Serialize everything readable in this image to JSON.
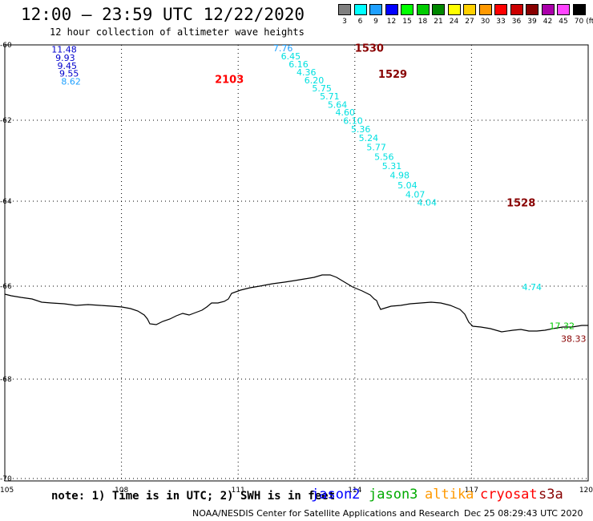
{
  "header": {
    "title": "12:00 – 23:59 UTC 12/22/2020",
    "subtitle": "12 hour collection of altimeter wave heights"
  },
  "legend": {
    "unit": "(ft)",
    "items": [
      {
        "label": "3",
        "color": "#808080"
      },
      {
        "label": "6",
        "color": "#00ffff"
      },
      {
        "label": "9",
        "color": "#1ea0ff"
      },
      {
        "label": "12",
        "color": "#0000ff"
      },
      {
        "label": "15",
        "color": "#00ff00"
      },
      {
        "label": "18",
        "color": "#00cc00"
      },
      {
        "label": "21",
        "color": "#008800"
      },
      {
        "label": "24",
        "color": "#ffff00"
      },
      {
        "label": "27",
        "color": "#ffd000"
      },
      {
        "label": "30",
        "color": "#ff9900"
      },
      {
        "label": "33",
        "color": "#ff0000"
      },
      {
        "label": "36",
        "color": "#cc0000"
      },
      {
        "label": "39",
        "color": "#880000"
      },
      {
        "label": "42",
        "color": "#aa00aa"
      },
      {
        "label": "45",
        "color": "#ff44ff"
      },
      {
        "label": "70",
        "color": "#000000"
      }
    ]
  },
  "map": {
    "lon_range": [
      105,
      120
    ],
    "lat_range": [
      -70,
      -60
    ],
    "lon_ticks": [
      "105",
      "108",
      "111",
      "114",
      "117",
      "120"
    ],
    "lat_ticks": [
      "-60",
      "-62",
      "-64",
      "-66",
      "-68",
      "-70"
    ],
    "grid": true,
    "coastline_color": "#000000",
    "pass_labels": [
      {
        "text": "2103",
        "lon": 110.4,
        "lat": -60.9,
        "color": "#ff0000"
      },
      {
        "text": "1530",
        "lon": 114.0,
        "lat": -60.07,
        "color": "#880000"
      },
      {
        "text": "1529",
        "lon": 114.6,
        "lat": -60.77,
        "color": "#880000"
      },
      {
        "text": "1528",
        "lon": 117.9,
        "lat": -64.03,
        "color": "#880000"
      }
    ],
    "observations": [
      {
        "text": "11.48",
        "lon": 106.2,
        "lat": -60.12,
        "color": "#0000cc"
      },
      {
        "text": "9.93",
        "lon": 106.3,
        "lat": -60.34,
        "color": "#0000cc"
      },
      {
        "text": "9.45",
        "lon": 106.35,
        "lat": -60.55,
        "color": "#0000cc"
      },
      {
        "text": "9.55",
        "lon": 106.4,
        "lat": -60.76,
        "color": "#0000cc"
      },
      {
        "text": "8.62",
        "lon": 106.45,
        "lat": -60.97,
        "color": "#1ea0ff"
      },
      {
        "text": "7.76",
        "lon": 111.9,
        "lat": -60.08,
        "color": "#1ea0ff"
      },
      {
        "text": "6.45",
        "lon": 112.1,
        "lat": -60.3,
        "color": "#00e0e0"
      },
      {
        "text": "6.16",
        "lon": 112.3,
        "lat": -60.51,
        "color": "#00e0e0"
      },
      {
        "text": "4.36",
        "lon": 112.5,
        "lat": -60.72,
        "color": "#00e0e0"
      },
      {
        "text": "6.20",
        "lon": 112.7,
        "lat": -60.94,
        "color": "#00e0e0"
      },
      {
        "text": "5.75",
        "lon": 112.9,
        "lat": -61.15,
        "color": "#00e0e0"
      },
      {
        "text": "5.71",
        "lon": 113.1,
        "lat": -61.36,
        "color": "#00e0e0"
      },
      {
        "text": "5.64",
        "lon": 113.3,
        "lat": -61.58,
        "color": "#00e0e0"
      },
      {
        "text": "4.60",
        "lon": 113.5,
        "lat": -61.79,
        "color": "#00e0e0"
      },
      {
        "text": "6.10",
        "lon": 113.7,
        "lat": -62.01,
        "color": "#00e0e0"
      },
      {
        "text": "5.36",
        "lon": 113.9,
        "lat": -62.22,
        "color": "#00e0e0"
      },
      {
        "text": "5.24",
        "lon": 114.1,
        "lat": -62.44,
        "color": "#00e0e0"
      },
      {
        "text": "5.77",
        "lon": 114.3,
        "lat": -62.66,
        "color": "#00e0e0"
      },
      {
        "text": "5.56",
        "lon": 114.5,
        "lat": -62.9,
        "color": "#00e0e0"
      },
      {
        "text": "5.31",
        "lon": 114.7,
        "lat": -63.13,
        "color": "#00e0e0"
      },
      {
        "text": "4.98",
        "lon": 114.9,
        "lat": -63.36,
        "color": "#00e0e0"
      },
      {
        "text": "5.04",
        "lon": 115.1,
        "lat": -63.6,
        "color": "#00e0e0"
      },
      {
        "text": "4.07",
        "lon": 115.3,
        "lat": -63.83,
        "color": "#00e0e0"
      },
      {
        "text": "4.04",
        "lon": 115.6,
        "lat": -64.03,
        "color": "#00e0e0"
      },
      {
        "text": "4.74",
        "lon": 118.3,
        "lat": -66.02,
        "color": "#00e0e0"
      },
      {
        "text": "17.32",
        "lon": 119.0,
        "lat": -66.85,
        "color": "#00cc00"
      },
      {
        "text": "38.33",
        "lon": 119.3,
        "lat": -67.13,
        "color": "#880000"
      }
    ]
  },
  "footer": {
    "note": "note: 1) Time is in UTC; 2) SWH is in feet",
    "missions": [
      {
        "name": "jason2",
        "color": "#0000ff"
      },
      {
        "name": "jason3",
        "color": "#00aa00"
      },
      {
        "name": "altika",
        "color": "#ff9900"
      },
      {
        "name": "cryosat",
        "color": "#ff0000"
      },
      {
        "name": "s3a",
        "color": "#880000"
      }
    ],
    "credit": "NOAA/NESDIS Center for Satellite Applications and Research",
    "timestamp": "Dec 25 08:29:43 UTC 2020"
  }
}
